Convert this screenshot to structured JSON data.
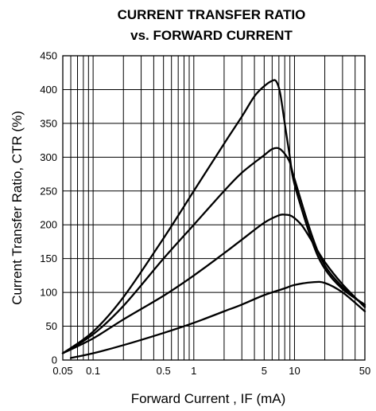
{
  "chart_data": {
    "type": "line",
    "title_lines": [
      "CURRENT TRANSFER RATIO",
      "vs.  FORWARD CURRENT"
    ],
    "xlabel": "Forward Current , IF (mA)",
    "ylabel": "Current Transfer Ratio, CTR (%)",
    "x_scale": "log",
    "xlim": [
      0.05,
      50
    ],
    "ylim": [
      0,
      450
    ],
    "grid": true,
    "x_ticks": [
      0.05,
      0.1,
      0.5,
      1,
      5,
      10,
      50
    ],
    "x_tick_labels": [
      "0.05",
      "0.1",
      "0.5",
      "1",
      "5",
      "10",
      "50"
    ],
    "y_ticks": [
      0,
      50,
      100,
      150,
      200,
      250,
      300,
      350,
      400,
      450
    ],
    "y_tick_labels": [
      "0",
      "50",
      "100",
      "150",
      "200",
      "250",
      "300",
      "350",
      "400",
      "450"
    ],
    "series": [
      {
        "points": [
          [
            0.05,
            10
          ],
          [
            0.1,
            42
          ],
          [
            0.2,
            93
          ],
          [
            0.5,
            180
          ],
          [
            1,
            250
          ],
          [
            2,
            320
          ],
          [
            3,
            360
          ],
          [
            4,
            390
          ],
          [
            5,
            405
          ],
          [
            6,
            413
          ],
          [
            6.6,
            412
          ],
          [
            7.2,
            395
          ],
          [
            8,
            350
          ],
          [
            9,
            300
          ],
          [
            10,
            260
          ],
          [
            15,
            175
          ],
          [
            20,
            135
          ],
          [
            30,
            105
          ],
          [
            50,
            82
          ]
        ]
      },
      {
        "points": [
          [
            0.05,
            10
          ],
          [
            0.1,
            38
          ],
          [
            0.2,
            80
          ],
          [
            0.5,
            150
          ],
          [
            1,
            200
          ],
          [
            2,
            250
          ],
          [
            3,
            277
          ],
          [
            5,
            303
          ],
          [
            6,
            312
          ],
          [
            7,
            313
          ],
          [
            8,
            305
          ],
          [
            9,
            292
          ],
          [
            10,
            268
          ],
          [
            15,
            183
          ],
          [
            20,
            140
          ],
          [
            30,
            108
          ],
          [
            50,
            80
          ]
        ]
      },
      {
        "points": [
          [
            0.05,
            10
          ],
          [
            0.1,
            32
          ],
          [
            0.2,
            60
          ],
          [
            0.5,
            95
          ],
          [
            1,
            125
          ],
          [
            2,
            158
          ],
          [
            3,
            178
          ],
          [
            5,
            203
          ],
          [
            7,
            214
          ],
          [
            8,
            215
          ],
          [
            9,
            214
          ],
          [
            10,
            210
          ],
          [
            12,
            198
          ],
          [
            15,
            175
          ],
          [
            20,
            145
          ],
          [
            30,
            112
          ],
          [
            50,
            78
          ]
        ]
      },
      {
        "points": [
          [
            0.06,
            3
          ],
          [
            0.1,
            10
          ],
          [
            0.2,
            22
          ],
          [
            0.5,
            40
          ],
          [
            1,
            55
          ],
          [
            2,
            72
          ],
          [
            3,
            82
          ],
          [
            5,
            96
          ],
          [
            8,
            106
          ],
          [
            10,
            111
          ],
          [
            15,
            115
          ],
          [
            20,
            114
          ],
          [
            30,
            100
          ],
          [
            50,
            72
          ]
        ]
      }
    ]
  }
}
